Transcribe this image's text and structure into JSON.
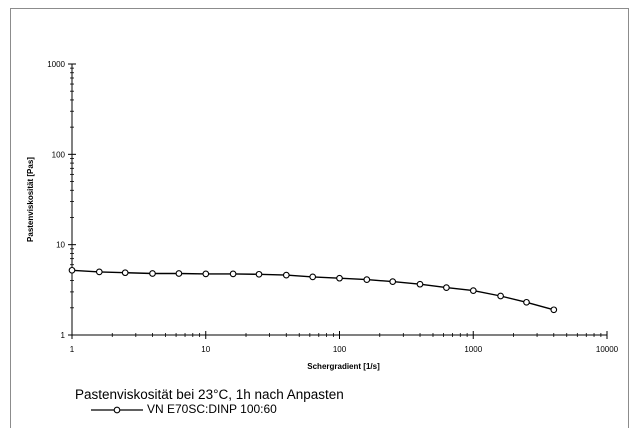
{
  "chart_data": {
    "type": "line",
    "title": "Pastenviskosität bei 23°C, 1h nach Anpasten",
    "xlabel": "Schergradient  [1/s]",
    "ylabel": "Pastenviskosität  [Pas]",
    "xscale": "log",
    "yscale": "log",
    "xlim": [
      1,
      10000
    ],
    "ylim": [
      1,
      1000
    ],
    "x_ticks": [
      "1",
      "10",
      "100",
      "1000",
      "10000"
    ],
    "y_ticks": [
      "1",
      "10",
      "100",
      "1000"
    ],
    "grid": false,
    "legend_position": "bottom-left",
    "series": [
      {
        "name": "VN E70SC:DINP 100:60",
        "color": "#000000",
        "marker": "circle-open",
        "x": [
          1,
          1.6,
          2.5,
          4,
          6.3,
          10,
          16,
          25,
          40,
          63,
          100,
          160,
          250,
          400,
          630,
          1000,
          1600,
          2500,
          4000
        ],
        "y": [
          5.2,
          5.0,
          4.9,
          4.8,
          4.8,
          4.75,
          4.75,
          4.7,
          4.6,
          4.4,
          4.25,
          4.1,
          3.9,
          3.65,
          3.35,
          3.1,
          2.7,
          2.3,
          1.9
        ]
      }
    ]
  }
}
